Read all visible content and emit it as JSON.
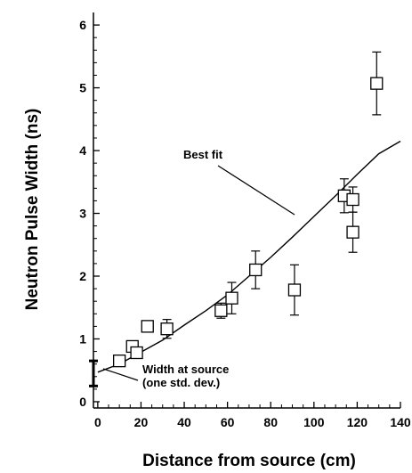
{
  "chart_data": {
    "type": "scatter",
    "title": "",
    "xlabel": "Distance from source (cm)",
    "ylabel": "Neutron Pulse Width (ns)",
    "xlim": [
      -2,
      140
    ],
    "ylim": [
      -0.1,
      6.2
    ],
    "xticks": [
      0,
      20,
      40,
      60,
      80,
      100,
      120,
      140
    ],
    "yticks": [
      0,
      1,
      2,
      3,
      4,
      5,
      6
    ],
    "grid": false,
    "series": [
      {
        "marker": "open-square",
        "points": [
          {
            "x": 10,
            "y": 0.65,
            "err": 0.05
          },
          {
            "x": 16,
            "y": 0.88,
            "err": 0.05
          },
          {
            "x": 18,
            "y": 0.78,
            "err": 0.05
          },
          {
            "x": 23,
            "y": 1.2,
            "err": 0.06
          },
          {
            "x": 32,
            "y": 1.16,
            "err": 0.15
          },
          {
            "x": 57,
            "y": 1.45,
            "err": 0.12
          },
          {
            "x": 62,
            "y": 1.65,
            "err": 0.25
          },
          {
            "x": 73,
            "y": 2.1,
            "err": 0.3
          },
          {
            "x": 91,
            "y": 1.78,
            "err": 0.4
          },
          {
            "x": 114,
            "y": 3.28,
            "err": 0.27
          },
          {
            "x": 118,
            "y": 3.22,
            "err": 0.2
          },
          {
            "x": 118,
            "y": 2.7,
            "err": 0.32
          },
          {
            "x": 129,
            "y": 5.07,
            "err": 0.5
          }
        ]
      },
      {
        "style": "line",
        "x": [
          0,
          10,
          20,
          30,
          40,
          50,
          60,
          70,
          80,
          90,
          100,
          110,
          120,
          130,
          140
        ],
        "y": [
          0.47,
          0.6,
          0.79,
          0.98,
          1.22,
          1.45,
          1.7,
          2.0,
          2.3,
          2.62,
          2.95,
          3.28,
          3.62,
          3.95,
          4.15
        ]
      }
    ],
    "source_bar": {
      "x": -2,
      "y": 0.45,
      "err": 0.2
    },
    "annotations": [
      {
        "text": "Best fit",
        "arrow_to": {
          "x": 83,
          "y": 2.9
        }
      },
      {
        "text": "Width at source",
        "arrow_to": {
          "x": -2,
          "y": 0.3
        }
      },
      {
        "text": "(one std. dev.)"
      }
    ]
  }
}
